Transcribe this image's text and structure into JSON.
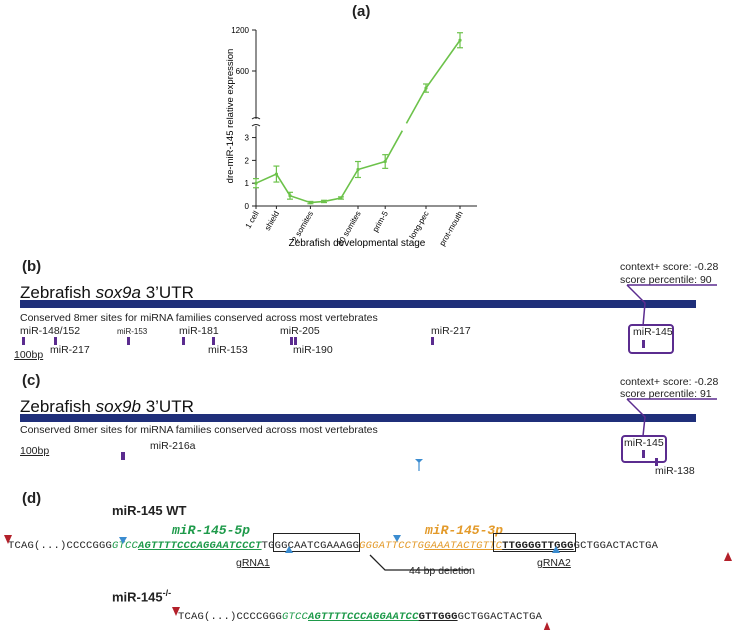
{
  "panels": {
    "a": "(a)",
    "b": "(b)",
    "c": "(c)",
    "d": "(d)"
  },
  "chart_data": {
    "type": "line",
    "xlabel": "Zebrafish developmental stage",
    "ylabel": "dre-miR-145 relative expression",
    "categories": [
      "1 cell",
      "shield",
      "2 somites",
      "20 somites",
      "prim-5",
      "long-pec",
      "prot-mouth"
    ],
    "y_ticks_low": [
      "0",
      "1",
      "2",
      "3"
    ],
    "y_ticks_high": [
      "600",
      "1200"
    ],
    "axis_break": true,
    "series": [
      {
        "points": [
          {
            "x": 0,
            "y": 1.0,
            "err": 0.2
          },
          {
            "x": 0.6,
            "y": 1.4,
            "err": 0.35
          },
          {
            "x": 1.0,
            "y": 0.45,
            "err": 0.15
          },
          {
            "x": 1.6,
            "y": 0.15,
            "err": 0.05
          },
          {
            "x": 2.0,
            "y": 0.2,
            "err": 0.05
          },
          {
            "x": 2.5,
            "y": 0.35,
            "err": 0.05
          },
          {
            "x": 3.0,
            "y": 1.6,
            "err": 0.35
          },
          {
            "x": 3.8,
            "y": 1.95,
            "err": 0.3
          },
          {
            "x": 5.0,
            "y": 350,
            "err": 60
          },
          {
            "x": 6.0,
            "y": 1050,
            "err": 110
          }
        ]
      }
    ],
    "color": "#6cc24a"
  },
  "panel_b": {
    "title_prefix": "Zebrafish ",
    "gene": "sox9a",
    "title_suffix": " 3’UTR",
    "conserved": "Conserved 8mer sites for miRNA families conserved across most vertebrates",
    "scale": "100bp",
    "context": "context+ score: -0.28",
    "percentile": "score percentile: 90",
    "sites": {
      "m148": "miR-148/152",
      "m217a": "miR-217",
      "m153a": "miR-153",
      "m181": "miR-181",
      "m153b": "miR-153",
      "m205": "miR-205",
      "m190": "miR-190",
      "m217b": "miR-217",
      "m145": "miR-145"
    }
  },
  "panel_c": {
    "title_prefix": "Zebrafish ",
    "gene": "sox9b",
    "title_suffix": " 3’UTR",
    "conserved": "Conserved 8mer sites for miRNA families conserved across most vertebrates",
    "scale": "100bp",
    "context": "context+ score: -0.28",
    "percentile": "score percentile: 91",
    "sites": {
      "m216a": "miR-216a",
      "m145": "miR-145",
      "m138": "miR-138"
    }
  },
  "panel_d": {
    "wt_title": "miR-145 WT",
    "mut_title": "miR-145",
    "mut_sup": "-/-",
    "label_5p": "miR-145-5p",
    "label_3p": "miR-145-3p",
    "wt_seq": {
      "s1": "TCAG(...)CCCCGGG",
      "s2": "GTCC",
      "s3": "AGTTTTCCCAGGAATCC",
      "s4": "CT",
      "s5": "TGGGCAATCGAAAGG",
      "s6": "GGGATTCCTG",
      "s7": "GAAATACTGTTC",
      "s8": "TTGGG",
      "s9": "GTTGGG",
      "s10": "GCTGGACTACTGA"
    },
    "mut_seq": {
      "s1": "TCAG(...)CCCCGGG",
      "s2": "GTCC",
      "s3": "AGTTTTCCCAGGAATCC",
      "s4": "GTTGGG",
      "s5": "GCTGGACTACTGA"
    },
    "grna1": "gRNA1",
    "grna2": "gRNA2",
    "deletion": "44 bp deletion"
  }
}
